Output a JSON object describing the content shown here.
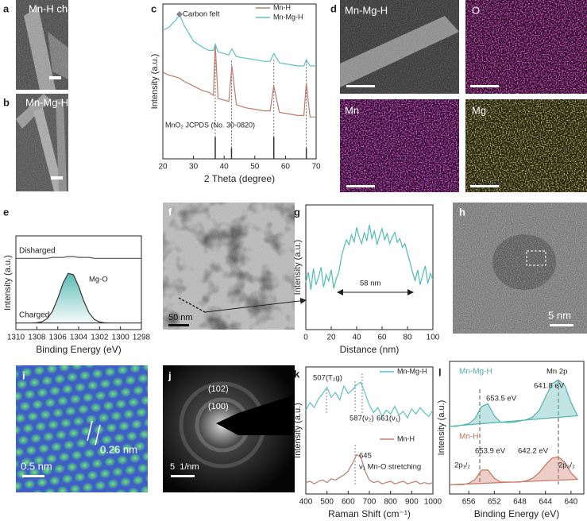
{
  "panels": {
    "a": {
      "label": "a",
      "caption": "Mn-H charged"
    },
    "b": {
      "label": "b",
      "caption": "Mn-Mg-H charged"
    },
    "d": {
      "label": "d",
      "maps": [
        "Mn-Mg-H",
        "O",
        "Mn",
        "Mg"
      ]
    },
    "f": {
      "label": "f",
      "scale_bar": "50 nm"
    },
    "h": {
      "label": "h",
      "scale_bar": "5 nm"
    },
    "i": {
      "label": "i",
      "spacing": "0.26 nm",
      "scale_bar": "0.5 nm"
    },
    "j": {
      "label": "j",
      "rings": [
        "(102)",
        "(100)"
      ],
      "scale_bar": "5  1/nm"
    }
  },
  "chart_data": [
    {
      "label": "c",
      "type": "line",
      "xlabel": "2 Theta (degree)",
      "ylabel": "Intensity (a.u.)",
      "x": [
        20,
        22,
        24,
        25.5,
        27,
        30,
        33,
        35,
        36.5,
        37.1,
        38,
        40,
        41.5,
        42.5,
        44,
        47,
        50,
        53,
        55,
        56.2,
        58,
        61,
        64,
        66,
        66.8,
        68,
        70
      ],
      "xlim": [
        20,
        70
      ],
      "xticks": [
        20,
        30,
        40,
        50,
        60,
        70
      ],
      "ylim": [
        0,
        10
      ],
      "legend": true,
      "series": [
        {
          "name": "Mn-H",
          "color": "#c07a6c",
          "values": [
            5.6,
            5.4,
            5.3,
            5.2,
            5.0,
            4.7,
            4.4,
            4.3,
            4.1,
            7.4,
            3.9,
            3.8,
            3.7,
            6.0,
            3.5,
            3.3,
            3.2,
            3.1,
            3.1,
            4.7,
            3.0,
            2.9,
            2.8,
            2.8,
            4.9,
            2.7,
            2.7
          ]
        },
        {
          "name": "Mn-Mg-H",
          "color": "#5cc2c2",
          "values": [
            8.3,
            8.5,
            8.9,
            9.3,
            8.6,
            7.6,
            7.2,
            7.0,
            7.0,
            7.4,
            6.9,
            6.8,
            6.7,
            7.1,
            6.6,
            6.5,
            6.4,
            6.3,
            6.3,
            6.8,
            6.2,
            6.1,
            6.0,
            6.0,
            6.4,
            6.0,
            6.0
          ]
        }
      ],
      "annotations": [
        "Carbon felt"
      ],
      "reference": {
        "name": "MnO₂ JCPDS (No. 30-0820)",
        "color": "#333333",
        "x": [
          37.1,
          42.4,
          56.2,
          66.8
        ],
        "values": [
          1.4,
          0.7,
          1.4,
          0.7
        ]
      }
    },
    {
      "label": "e",
      "type": "line",
      "xlabel": "Binding Energy (eV)",
      "ylabel": "Intensity (a.u.)",
      "x": [
        1310,
        1309.5,
        1309,
        1308.5,
        1308,
        1307.5,
        1307,
        1306.5,
        1306,
        1305.5,
        1305,
        1304.5,
        1304,
        1303.5,
        1303,
        1302.5,
        1302,
        1301.5,
        1301,
        1300.5,
        1300,
        1299.5,
        1299,
        1298.5,
        1298
      ],
      "xlim": [
        1310,
        1298
      ],
      "xticks": [
        1310,
        1308,
        1306,
        1304,
        1302,
        1300,
        1298
      ],
      "ylim": [
        0,
        10
      ],
      "legend": false,
      "series": [
        {
          "name": "Disharged",
          "color": "#555555",
          "values": [
            7.6,
            7.6,
            7.6,
            7.6,
            7.6,
            7.6,
            7.6,
            7.7,
            7.7,
            7.7,
            7.8,
            7.8,
            7.7,
            7.7,
            7.7,
            7.6,
            7.6,
            7.6,
            7.6,
            7.6,
            7.6,
            7.6,
            7.6,
            7.6,
            7.6
          ]
        },
        {
          "name": "Charged",
          "color": "#333333",
          "values": [
            0.7,
            0.7,
            0.7,
            0.7,
            0.73,
            0.84,
            1.18,
            1.97,
            3.33,
            4.93,
            6.0,
            5.86,
            4.62,
            3.02,
            1.77,
            1.08,
            0.81,
            0.72,
            0.7,
            0.7,
            0.7,
            0.7,
            0.7,
            0.7,
            0.7
          ]
        }
      ],
      "annotations": [
        "Mg-O"
      ]
    },
    {
      "label": "g",
      "type": "line",
      "xlabel": "Distance (nm)",
      "ylabel": "Intensity (a.u.)",
      "x": [
        0,
        2,
        4,
        6,
        8,
        10,
        12,
        14,
        16,
        18,
        20,
        22,
        24,
        26,
        28,
        30,
        32,
        34,
        36,
        38,
        40,
        42,
        44,
        46,
        48,
        50,
        52,
        54,
        56,
        58,
        60,
        62,
        64,
        66,
        68,
        70,
        72,
        74,
        76,
        78,
        80,
        82,
        84,
        86,
        88,
        90,
        92,
        94,
        96,
        98,
        100
      ],
      "xlim": [
        0,
        100
      ],
      "xticks": [
        0,
        20,
        40,
        60,
        80,
        100
      ],
      "ylim": [
        0,
        10
      ],
      "legend": false,
      "series": [
        {
          "color": "#4fbcbc",
          "values": [
            3.8,
            4.6,
            3.2,
            4.9,
            3.6,
            4.2,
            5.0,
            3.4,
            4.4,
            3.9,
            4.8,
            3.3,
            4.1,
            4.6,
            5.8,
            6.6,
            7.2,
            6.8,
            7.6,
            7.0,
            8.2,
            7.4,
            6.9,
            7.8,
            7.1,
            8.4,
            7.3,
            7.9,
            6.8,
            7.5,
            8.1,
            7.2,
            7.7,
            6.9,
            7.4,
            7.8,
            7.0,
            7.3,
            6.6,
            6.9,
            6.1,
            5.4,
            4.6,
            3.9,
            4.8,
            3.6,
            4.4,
            5.1,
            3.7,
            4.5,
            4.0
          ]
        }
      ],
      "annotations": [
        "58 nm"
      ]
    },
    {
      "label": "k",
      "type": "line",
      "xlabel": "Raman Shift (cm⁻¹)",
      "ylabel": "Intensity (a.u.)",
      "x": [
        400,
        420,
        440,
        460,
        480,
        500,
        520,
        540,
        560,
        580,
        600,
        620,
        640,
        660,
        680,
        700,
        720,
        740,
        760,
        780,
        800,
        820,
        840,
        860,
        880,
        900,
        920,
        940,
        960,
        980,
        1000
      ],
      "xlim": [
        400,
        1000
      ],
      "xticks": [
        400,
        500,
        600,
        700,
        800,
        900,
        1000
      ],
      "ylim": [
        0,
        10
      ],
      "legend": true,
      "series": [
        {
          "name": "Mn-Mg-H",
          "color": "#5cc2c2",
          "values": [
            6.6,
            7.2,
            6.8,
            7.5,
            7.9,
            8.4,
            7.6,
            8.0,
            7.4,
            8.5,
            7.9,
            8.2,
            8.6,
            8.8,
            7.9,
            7.0,
            6.4,
            6.8,
            6.1,
            6.6,
            6.3,
            6.9,
            6.2,
            6.5,
            6.0,
            6.7,
            6.3,
            6.8,
            6.4,
            6.1,
            6.6
          ]
        },
        {
          "name": "Mn-H",
          "color": "#c07a6c",
          "values": [
            0.9,
            1.0,
            0.8,
            1.0,
            1.1,
            0.9,
            1.2,
            1.1,
            1.3,
            1.5,
            1.8,
            2.4,
            3.1,
            2.9,
            1.8,
            1.1,
            0.9,
            1.0,
            0.8,
            0.9,
            1.0,
            0.8,
            0.9,
            1.0,
            0.8,
            0.9,
            1.0,
            0.8,
            0.9,
            0.8,
            0.9
          ]
        }
      ],
      "annotations": [
        "507(T₂g)",
        "587(ν₂)",
        "661(ν₁)",
        "645",
        "ν₁ Mn-O stretching"
      ]
    },
    {
      "label": "l",
      "type": "line",
      "xlabel": "Binding Energy (eV)",
      "ylabel": "Intensity (a.u.)",
      "x": [
        659,
        658,
        657,
        656,
        655,
        654,
        653,
        652,
        651,
        650,
        649,
        648,
        647,
        646,
        645,
        644,
        643,
        642,
        641,
        640,
        639
      ],
      "xlim": [
        659,
        638
      ],
      "xticks": [
        656,
        652,
        648,
        644,
        640
      ],
      "ylim": [
        0,
        10
      ],
      "legend": false,
      "series": [
        {
          "name": "Mn-Mg-H",
          "color": "#4fb3b0",
          "values": [
            5.1,
            5.1,
            5.2,
            5.3,
            5.7,
            6.6,
            6.8,
            5.9,
            5.4,
            5.4,
            5.4,
            5.5,
            5.6,
            5.8,
            6.3,
            7.3,
            8.3,
            8.6,
            8.2,
            6.9,
            5.9
          ]
        },
        {
          "name": "Mn-H",
          "color": "#c9715f",
          "values": [
            0.7,
            0.7,
            0.7,
            0.8,
            1.1,
            1.8,
            1.8,
            1.2,
            0.9,
            0.9,
            0.9,
            0.9,
            1.0,
            1.2,
            1.6,
            2.2,
            2.7,
            2.8,
            2.4,
            1.6,
            1.1
          ]
        }
      ],
      "annotations": [
        "Mn 2p",
        "653.5 eV",
        "641.8 eV",
        "653.9 eV",
        "642.2 eV",
        "2p₁/₂",
        "2p₃/₂"
      ]
    }
  ]
}
